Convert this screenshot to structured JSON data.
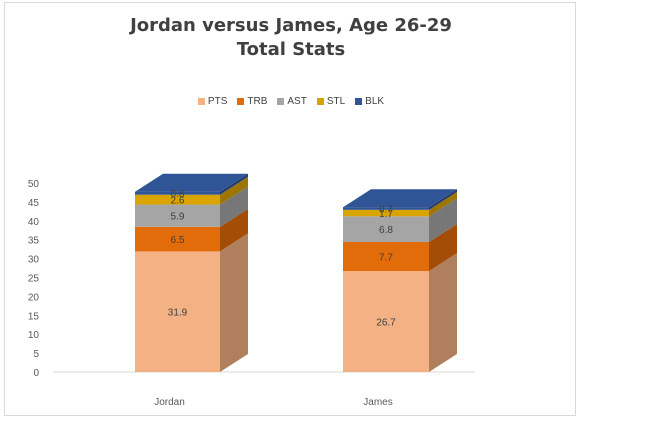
{
  "chart_data": {
    "type": "bar",
    "stacked": true,
    "title": "Jordan versus James, Age 26-29",
    "subtitle": "Total Stats",
    "categories": [
      "Jordan",
      "James"
    ],
    "series": [
      {
        "name": "PTS",
        "values": [
          31.9,
          26.7
        ],
        "color": "#f4b183"
      },
      {
        "name": "TRB",
        "values": [
          6.5,
          7.7
        ],
        "color": "#e26b0a"
      },
      {
        "name": "AST",
        "values": [
          5.9,
          6.8
        ],
        "color": "#a5a5a5"
      },
      {
        "name": "STL",
        "values": [
          2.6,
          1.7
        ],
        "color": "#d9a400"
      },
      {
        "name": "BLK",
        "values": [
          0.8,
          0.7
        ],
        "color": "#2f5597"
      }
    ],
    "data_labels": [
      [
        "31.9",
        "6.5",
        "5.9",
        "2.6",
        "0.8"
      ],
      [
        "26.7",
        "7.7",
        "6.8",
        "1.7",
        "0.7"
      ]
    ],
    "ylim": [
      0,
      50
    ],
    "yticks": [
      "0",
      "5",
      "10",
      "15",
      "20",
      "25",
      "30",
      "35",
      "40",
      "45",
      "50"
    ],
    "legend_position": "top",
    "grid": false
  }
}
